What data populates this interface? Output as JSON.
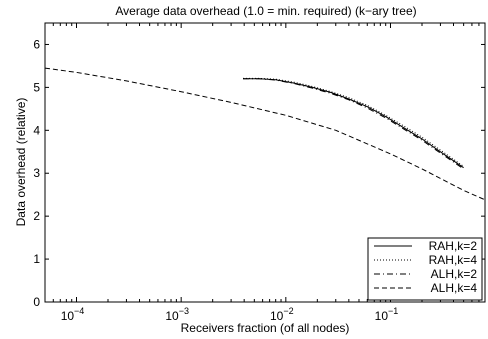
{
  "chart_data": {
    "type": "line",
    "title": "Average data overhead (1.0 = min. required) (k−ary tree)",
    "xlabel": "Receivers fraction (of all nodes)",
    "ylabel": "Data overhead (relative)",
    "xscale": "log",
    "xlim": [
      5e-05,
      0.8
    ],
    "ylim": [
      0,
      6.5
    ],
    "xticks": [
      0.0001,
      0.001,
      0.01,
      0.1
    ],
    "xtick_labels": [
      {
        "base": "10",
        "exp": "−4"
      },
      {
        "base": "10",
        "exp": "−3"
      },
      {
        "base": "10",
        "exp": "−2"
      },
      {
        "base": "10",
        "exp": "−1"
      }
    ],
    "yticks": [
      0,
      1,
      2,
      3,
      4,
      5,
      6
    ],
    "ytick_labels": [
      "0",
      "1",
      "2",
      "3",
      "4",
      "5",
      "6"
    ],
    "grid": false,
    "legend_position": "bottom-right",
    "series": [
      {
        "name": "RAH,k=2",
        "style": "solid",
        "x": [
          0.0039,
          0.0056,
          0.008,
          0.012,
          0.018,
          0.027,
          0.04,
          0.06,
          0.09,
          0.13,
          0.2,
          0.3,
          0.5
        ],
        "y": [
          5.2,
          5.2,
          5.18,
          5.1,
          5.0,
          4.88,
          4.73,
          4.55,
          4.32,
          4.08,
          3.8,
          3.5,
          3.13
        ]
      },
      {
        "name": "RAH,k=4",
        "style": "dotted",
        "x": [
          0.0039,
          0.0056,
          0.008,
          0.012,
          0.018,
          0.027,
          0.04,
          0.06,
          0.09,
          0.13,
          0.2,
          0.3,
          0.5
        ],
        "y": [
          5.21,
          5.21,
          5.19,
          5.12,
          5.02,
          4.9,
          4.76,
          4.58,
          4.35,
          4.12,
          3.84,
          3.54,
          3.16
        ]
      },
      {
        "name": "ALH,k=2",
        "style": "dashdot",
        "x": [
          0.0039,
          0.0056,
          0.008,
          0.012,
          0.018,
          0.027,
          0.04,
          0.06,
          0.09,
          0.13,
          0.2,
          0.3,
          0.5
        ],
        "y": [
          5.2,
          5.2,
          5.17,
          5.09,
          4.98,
          4.86,
          4.71,
          4.52,
          4.29,
          4.05,
          3.77,
          3.47,
          3.1
        ]
      },
      {
        "name": "ALH,k=4",
        "style": "dashed",
        "x": [
          5e-05,
          0.0001,
          0.0003,
          0.001,
          0.003,
          0.01,
          0.03,
          0.1,
          0.2,
          0.3,
          0.5,
          0.8
        ],
        "y": [
          5.45,
          5.35,
          5.15,
          4.9,
          4.65,
          4.35,
          4.0,
          3.45,
          3.1,
          2.88,
          2.6,
          2.38
        ]
      }
    ]
  }
}
